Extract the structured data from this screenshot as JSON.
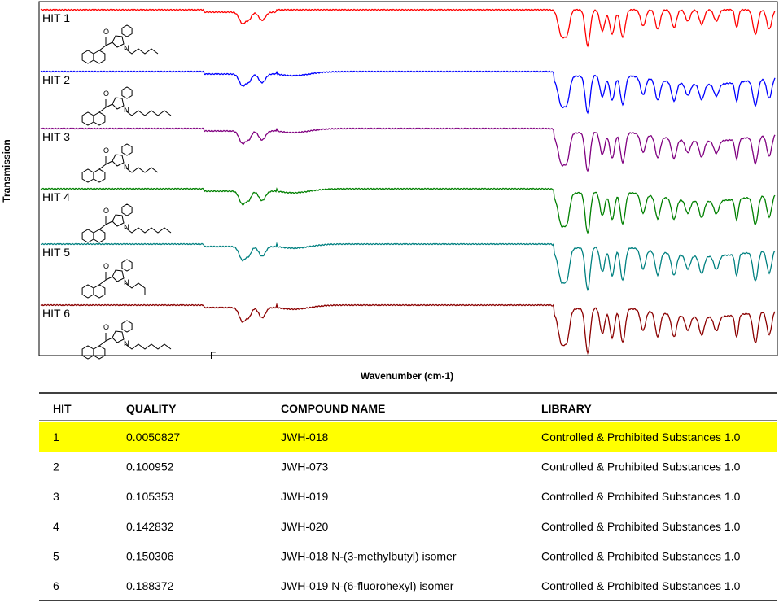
{
  "figure": {
    "y_label": "Transmission",
    "x_label": "Wavenumber (cm-1)",
    "spectra": [
      {
        "label": "HIT 1",
        "color": "#ff0000",
        "atoms": [
          "O",
          "N"
        ]
      },
      {
        "label": "HIT 2",
        "color": "#0000ff",
        "atoms": [
          "O",
          "N"
        ]
      },
      {
        "label": "HIT 3",
        "color": "#800080",
        "atoms": [
          "O",
          "N"
        ]
      },
      {
        "label": "HIT 4",
        "color": "#008000",
        "atoms": [
          "O",
          "N"
        ]
      },
      {
        "label": "HIT 5",
        "color": "#008080",
        "atoms": [
          "O",
          "N"
        ]
      },
      {
        "label": "HIT 6",
        "color": "#8b0000",
        "atoms": [
          "O",
          "N",
          "F"
        ]
      }
    ]
  },
  "table": {
    "columns": [
      "HIT",
      "QUALITY",
      "COMPOUND NAME",
      "LIBRARY"
    ],
    "rows": [
      [
        "1",
        "0.0050827",
        "JWH-018",
        "Controlled & Prohibited Substances 1.0"
      ],
      [
        "2",
        "0.100952",
        "JWH-073",
        "Controlled & Prohibited Substances 1.0"
      ],
      [
        "3",
        "0.105353",
        "JWH-019",
        "Controlled & Prohibited Substances 1.0"
      ],
      [
        "4",
        "0.142832",
        "JWH-020",
        "Controlled & Prohibited Substances 1.0"
      ],
      [
        "5",
        "0.150306",
        "JWH-018 N-(3-methylbutyl) isomer",
        "Controlled & Prohibited Substances 1.0"
      ],
      [
        "6",
        "0.188372",
        "JWH-019 N-(6-fluorohexyl) isomer",
        "Controlled & Prohibited Substances 1.0"
      ]
    ],
    "highlighted_row": 0,
    "highlight_color": "#ffff00"
  }
}
